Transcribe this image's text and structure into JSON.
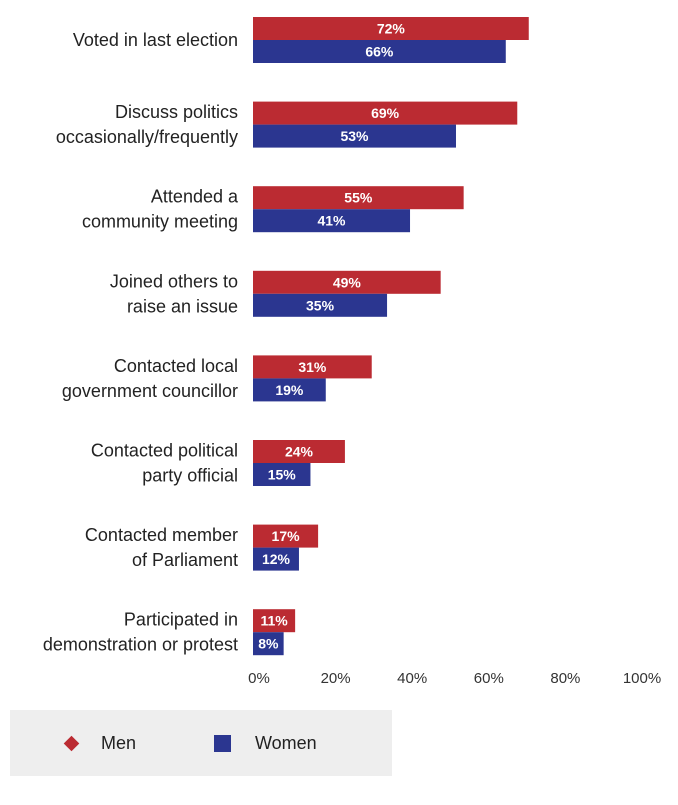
{
  "chart_data": {
    "type": "bar",
    "orientation": "horizontal",
    "categories": [
      [
        "Voted in last election"
      ],
      [
        "Discuss politics",
        "occasionally/frequently"
      ],
      [
        "Attended a",
        "community meeting"
      ],
      [
        "Joined others to",
        "raise an issue"
      ],
      [
        "Contacted local",
        "government councillor"
      ],
      [
        "Contacted political",
        "party official"
      ],
      [
        "Contacted member",
        "of Parliament"
      ],
      [
        "Participated in",
        "demonstration or protest"
      ]
    ],
    "series": [
      {
        "name": "Men",
        "values": [
          72,
          69,
          55,
          49,
          31,
          24,
          17,
          11
        ],
        "labels": [
          "72%",
          "69%",
          "55%",
          "49%",
          "31%",
          "24%",
          "17%",
          "11%"
        ],
        "color": "#BB2B32"
      },
      {
        "name": "Women",
        "values": [
          66,
          53,
          41,
          35,
          19,
          15,
          12,
          8
        ],
        "labels": [
          "66%",
          "53%",
          "41%",
          "35%",
          "19%",
          "15%",
          "12%",
          "8%"
        ],
        "color": "#2B3690"
      }
    ],
    "xlim": [
      0,
      100
    ],
    "xticks": [
      "0%",
      "20%",
      "40%",
      "60%",
      "80%",
      "100%"
    ],
    "legend_position": "bottom-left"
  },
  "legend": {
    "men_label": "Men",
    "women_label": "Women",
    "men_color": "#BB2B32",
    "women_color": "#2B3690",
    "men_marker": "diamond",
    "women_marker": "square",
    "background": "#EEEEEE"
  }
}
